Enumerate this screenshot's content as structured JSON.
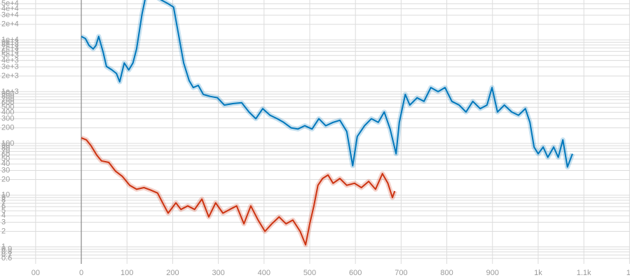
{
  "chart_data": {
    "type": "line",
    "log_y": true,
    "grid": true,
    "xlim": [
      -178,
      1201
    ],
    "ylim": [
      0.47,
      59000
    ],
    "xticks": [
      {
        "value": -100,
        "label": "00"
      },
      0,
      100,
      200,
      300,
      400,
      500,
      600,
      700,
      800,
      900,
      {
        "value": 1000,
        "label": "1k"
      },
      {
        "value": 1100,
        "label": "1.1k"
      },
      {
        "value": 1200,
        "label": "1."
      }
    ],
    "yticks": [
      0.6,
      0.7,
      0.8,
      0.9,
      1,
      2,
      3,
      4,
      5,
      6,
      7,
      8,
      9,
      10,
      20,
      30,
      40,
      50,
      60,
      70,
      80,
      90,
      100,
      200,
      300,
      400,
      500,
      600,
      700,
      800,
      900,
      {
        "value": 1000,
        "label": "1e+3"
      },
      {
        "value": 2000,
        "label": "2e+3"
      },
      {
        "value": 3000,
        "label": "3e+3"
      },
      {
        "value": 4000,
        "label": "4e+3"
      },
      {
        "value": 5000,
        "label": "5e+3"
      },
      {
        "value": 6000,
        "label": "6e+3"
      },
      {
        "value": 7000,
        "label": "7e+3"
      },
      {
        "value": 8000,
        "label": "8e+3"
      },
      {
        "value": 9000,
        "label": "9e+3"
      },
      {
        "value": 10000,
        "label": "1e+4"
      },
      {
        "value": 20000,
        "label": "2e+4"
      },
      {
        "value": 30000,
        "label": "3e+4"
      },
      {
        "value": 40000,
        "label": "4e+4"
      },
      {
        "value": 50000,
        "label": "5e+4"
      }
    ],
    "series": [
      {
        "color": "#0077bb",
        "x": [
          0,
          9,
          17,
          26,
          32,
          38,
          48,
          55,
          67,
          77,
          84,
          94,
          104,
          113,
          121,
          133,
          141,
          163,
          175,
          190,
          202,
          213,
          224,
          236,
          245,
          256,
          267,
          282,
          298,
          313,
          333,
          351,
          367,
          382,
          397,
          413,
          429,
          443,
          459,
          474,
          489,
          505,
          520,
          535,
          551,
          566,
          581,
          594,
          604,
          620,
          635,
          650,
          663,
          676,
          689,
          696,
          709,
          719,
          735,
          750,
          765,
          781,
          796,
          811,
          827,
          842,
          857,
          873,
          888,
          899,
          911,
          926,
          942,
          957,
          972,
          982,
          991,
          1000,
          1011,
          1021,
          1034,
          1044,
          1054,
          1064,
          1075
        ],
        "values": [
          11700,
          10600,
          7800,
          6700,
          7800,
          11700,
          5700,
          3070,
          2630,
          2240,
          1550,
          3580,
          2630,
          3580,
          6700,
          31600,
          70000,
          69000,
          59000,
          50000,
          43000,
          12400,
          3580,
          1640,
          1200,
          1320,
          885,
          810,
          760,
          550,
          590,
          610,
          405,
          300,
          470,
          350,
          300,
          255,
          200,
          190,
          220,
          190,
          300,
          220,
          255,
          280,
          170,
          37,
          136,
          220,
          300,
          255,
          405,
          190,
          63,
          255,
          885,
          550,
          760,
          650,
          1200,
          1000,
          1200,
          650,
          550,
          405,
          650,
          470,
          550,
          1200,
          405,
          550,
          405,
          350,
          470,
          255,
          85,
          63,
          85,
          54,
          85,
          54,
          117,
          35,
          63
        ]
      },
      {
        "color": "#cc3311",
        "x": [
          0,
          11,
          21,
          34,
          44,
          60,
          75,
          90,
          106,
          121,
          137,
          152,
          167,
          178,
          190,
          207,
          218,
          233,
          248,
          264,
          279,
          294,
          310,
          325,
          340,
          356,
          371,
          387,
          402,
          417,
          433,
          448,
          463,
          479,
          491,
          500,
          509,
          518,
          528,
          540,
          551,
          566,
          581,
          598,
          613,
          629,
          644,
          659,
          671,
          681,
          686
        ],
        "values": [
          128,
          117,
          91,
          59,
          46,
          43,
          29,
          23,
          15.5,
          13,
          14,
          12.5,
          11,
          7.1,
          4.5,
          7.1,
          5.3,
          6.2,
          5.3,
          8.4,
          3.8,
          7.1,
          4.5,
          5.3,
          6.2,
          2.8,
          6.2,
          3.3,
          2,
          2.8,
          3.8,
          2.8,
          3.3,
          2,
          1.1,
          2.8,
          6.2,
          15.5,
          21,
          24.5,
          17,
          21,
          15.5,
          17,
          14,
          18.5,
          13,
          26,
          17,
          9,
          12
        ]
      }
    ]
  }
}
